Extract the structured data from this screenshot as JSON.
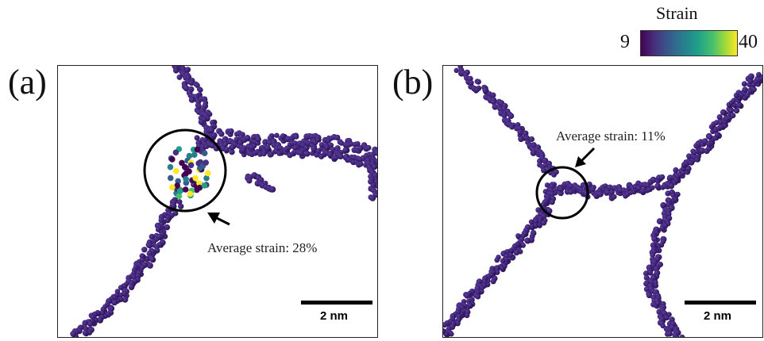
{
  "colorbar": {
    "title": "Strain",
    "min": "9",
    "max": "40",
    "gradient": [
      "#440154",
      "#46327e",
      "#365c8d",
      "#277f8e",
      "#1fa187",
      "#4ac16d",
      "#a0da39",
      "#fde725"
    ]
  },
  "panels": [
    {
      "letter": "(a)",
      "annotation": "Average strain: 28%",
      "scale_label": "2 nm"
    },
    {
      "letter": "(b)",
      "annotation": "Average strain: 11%",
      "scale_label": "2 nm"
    }
  ],
  "colors": {
    "atom_base": "#3b1e6e",
    "atom_light": "#5a3f9e",
    "atom_dark": "#24104a"
  }
}
